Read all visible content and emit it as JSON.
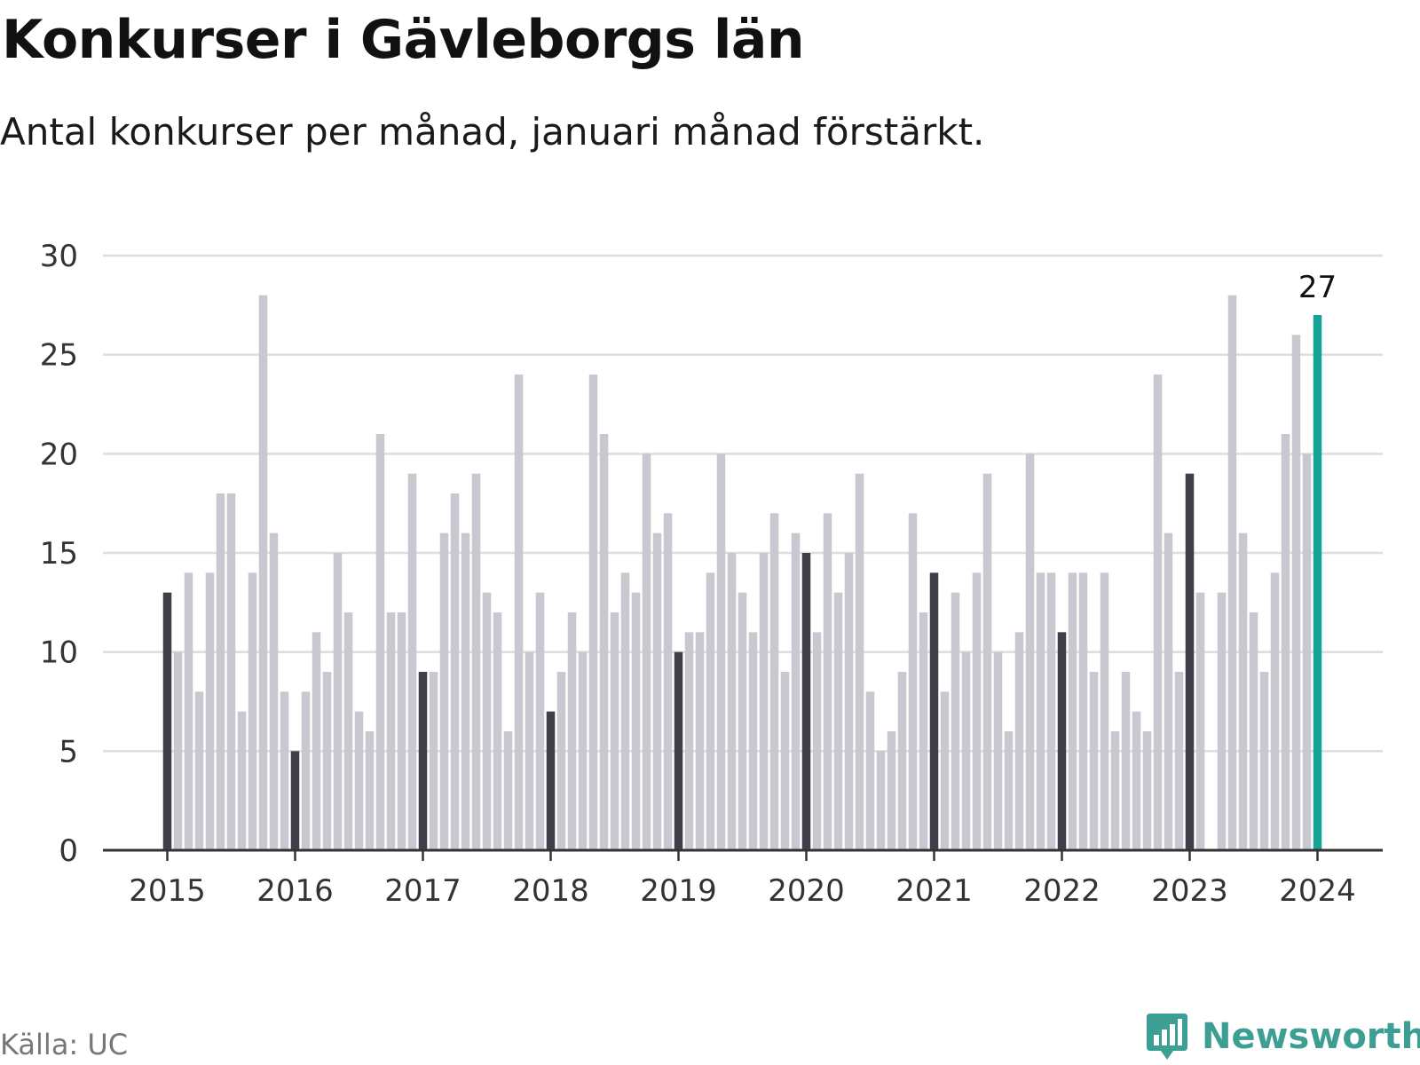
{
  "header": {
    "title": "Konkurser i Gävleborgs län",
    "subtitle": "Antal konkurser per månad, januari månad förstärkt."
  },
  "footer": {
    "source": "Källa: UC",
    "brand": "Newsworthy",
    "brand_icon": "bar-chart-speech-bubble-icon"
  },
  "colors": {
    "regular_bar": "#c8c8d0",
    "january_bar": "#3f3f4a",
    "latest_bar": "#15a396",
    "grid": "#dddddd",
    "axis": "#333333",
    "tick_text": "#333333",
    "brand": "#3d9e94"
  },
  "chart_data": {
    "type": "bar",
    "title": "Konkurser i Gävleborgs län",
    "subtitle": "Antal konkurser per månad, januari månad förstärkt.",
    "xlabel": "",
    "ylabel": "",
    "ylim": [
      0,
      30
    ],
    "yticks": [
      "0",
      "5",
      "10",
      "15",
      "20",
      "25",
      "30"
    ],
    "xticks": [
      "2015",
      "2016",
      "2017",
      "2018",
      "2019",
      "2020",
      "2021",
      "2022",
      "2023",
      "2024"
    ],
    "grid": true,
    "start": "2015-01",
    "highlight": "January bars shown darker; latest month (2024-01) highlighted in teal",
    "latest_label": "27",
    "values": [
      13,
      10,
      14,
      8,
      14,
      18,
      18,
      7,
      14,
      28,
      16,
      8,
      5,
      8,
      11,
      9,
      15,
      12,
      7,
      6,
      21,
      12,
      12,
      19,
      9,
      9,
      16,
      18,
      16,
      19,
      13,
      12,
      6,
      24,
      10,
      13,
      7,
      9,
      12,
      10,
      24,
      21,
      12,
      14,
      13,
      20,
      16,
      17,
      10,
      11,
      11,
      14,
      20,
      15,
      13,
      11,
      15,
      17,
      9,
      16,
      15,
      11,
      17,
      13,
      15,
      19,
      8,
      5,
      6,
      9,
      17,
      12,
      14,
      8,
      13,
      10,
      14,
      19,
      10,
      6,
      11,
      20,
      14,
      14,
      11,
      14,
      14,
      9,
      14,
      6,
      9,
      7,
      6,
      24,
      16,
      9,
      19,
      13,
      0,
      13,
      28,
      16,
      12,
      9,
      14,
      21,
      26,
      20,
      27
    ]
  }
}
